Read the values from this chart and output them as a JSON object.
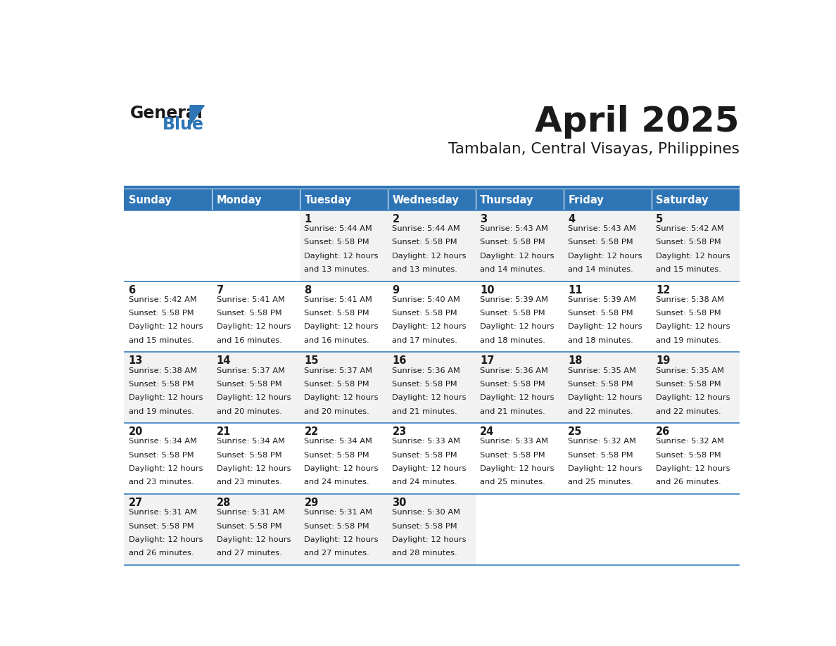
{
  "title": "April 2025",
  "subtitle": "Tambalan, Central Visayas, Philippines",
  "days_of_week": [
    "Sunday",
    "Monday",
    "Tuesday",
    "Wednesday",
    "Thursday",
    "Friday",
    "Saturday"
  ],
  "header_bg": "#2E75B6",
  "header_text": "#FFFFFF",
  "row_bg_odd": "#F2F2F2",
  "row_bg_even": "#FFFFFF",
  "cell_border": "#3A7EBF",
  "title_color": "#1a1a1a",
  "subtitle_color": "#1a1a1a",
  "text_color": "#1a1a1a",
  "logo_text_color": "#1a1a1a",
  "logo_blue_color": "#2E75B6",
  "calendar_data": [
    [
      {
        "day": "",
        "sunrise": "",
        "sunset": "",
        "daylight": ""
      },
      {
        "day": "",
        "sunrise": "",
        "sunset": "",
        "daylight": ""
      },
      {
        "day": "1",
        "sunrise": "5:44 AM",
        "sunset": "5:58 PM",
        "daylight": "12 hours and 13 minutes."
      },
      {
        "day": "2",
        "sunrise": "5:44 AM",
        "sunset": "5:58 PM",
        "daylight": "12 hours and 13 minutes."
      },
      {
        "day": "3",
        "sunrise": "5:43 AM",
        "sunset": "5:58 PM",
        "daylight": "12 hours and 14 minutes."
      },
      {
        "day": "4",
        "sunrise": "5:43 AM",
        "sunset": "5:58 PM",
        "daylight": "12 hours and 14 minutes."
      },
      {
        "day": "5",
        "sunrise": "5:42 AM",
        "sunset": "5:58 PM",
        "daylight": "12 hours and 15 minutes."
      }
    ],
    [
      {
        "day": "6",
        "sunrise": "5:42 AM",
        "sunset": "5:58 PM",
        "daylight": "12 hours and 15 minutes."
      },
      {
        "day": "7",
        "sunrise": "5:41 AM",
        "sunset": "5:58 PM",
        "daylight": "12 hours and 16 minutes."
      },
      {
        "day": "8",
        "sunrise": "5:41 AM",
        "sunset": "5:58 PM",
        "daylight": "12 hours and 16 minutes."
      },
      {
        "day": "9",
        "sunrise": "5:40 AM",
        "sunset": "5:58 PM",
        "daylight": "12 hours and 17 minutes."
      },
      {
        "day": "10",
        "sunrise": "5:39 AM",
        "sunset": "5:58 PM",
        "daylight": "12 hours and 18 minutes."
      },
      {
        "day": "11",
        "sunrise": "5:39 AM",
        "sunset": "5:58 PM",
        "daylight": "12 hours and 18 minutes."
      },
      {
        "day": "12",
        "sunrise": "5:38 AM",
        "sunset": "5:58 PM",
        "daylight": "12 hours and 19 minutes."
      }
    ],
    [
      {
        "day": "13",
        "sunrise": "5:38 AM",
        "sunset": "5:58 PM",
        "daylight": "12 hours and 19 minutes."
      },
      {
        "day": "14",
        "sunrise": "5:37 AM",
        "sunset": "5:58 PM",
        "daylight": "12 hours and 20 minutes."
      },
      {
        "day": "15",
        "sunrise": "5:37 AM",
        "sunset": "5:58 PM",
        "daylight": "12 hours and 20 minutes."
      },
      {
        "day": "16",
        "sunrise": "5:36 AM",
        "sunset": "5:58 PM",
        "daylight": "12 hours and 21 minutes."
      },
      {
        "day": "17",
        "sunrise": "5:36 AM",
        "sunset": "5:58 PM",
        "daylight": "12 hours and 21 minutes."
      },
      {
        "day": "18",
        "sunrise": "5:35 AM",
        "sunset": "5:58 PM",
        "daylight": "12 hours and 22 minutes."
      },
      {
        "day": "19",
        "sunrise": "5:35 AM",
        "sunset": "5:58 PM",
        "daylight": "12 hours and 22 minutes."
      }
    ],
    [
      {
        "day": "20",
        "sunrise": "5:34 AM",
        "sunset": "5:58 PM",
        "daylight": "12 hours and 23 minutes."
      },
      {
        "day": "21",
        "sunrise": "5:34 AM",
        "sunset": "5:58 PM",
        "daylight": "12 hours and 23 minutes."
      },
      {
        "day": "22",
        "sunrise": "5:34 AM",
        "sunset": "5:58 PM",
        "daylight": "12 hours and 24 minutes."
      },
      {
        "day": "23",
        "sunrise": "5:33 AM",
        "sunset": "5:58 PM",
        "daylight": "12 hours and 24 minutes."
      },
      {
        "day": "24",
        "sunrise": "5:33 AM",
        "sunset": "5:58 PM",
        "daylight": "12 hours and 25 minutes."
      },
      {
        "day": "25",
        "sunrise": "5:32 AM",
        "sunset": "5:58 PM",
        "daylight": "12 hours and 25 minutes."
      },
      {
        "day": "26",
        "sunrise": "5:32 AM",
        "sunset": "5:58 PM",
        "daylight": "12 hours and 26 minutes."
      }
    ],
    [
      {
        "day": "27",
        "sunrise": "5:31 AM",
        "sunset": "5:58 PM",
        "daylight": "12 hours and 26 minutes."
      },
      {
        "day": "28",
        "sunrise": "5:31 AM",
        "sunset": "5:58 PM",
        "daylight": "12 hours and 27 minutes."
      },
      {
        "day": "29",
        "sunrise": "5:31 AM",
        "sunset": "5:58 PM",
        "daylight": "12 hours and 27 minutes."
      },
      {
        "day": "30",
        "sunrise": "5:30 AM",
        "sunset": "5:58 PM",
        "daylight": "12 hours and 28 minutes."
      },
      {
        "day": "",
        "sunrise": "",
        "sunset": "",
        "daylight": ""
      },
      {
        "day": "",
        "sunrise": "",
        "sunset": "",
        "daylight": ""
      },
      {
        "day": "",
        "sunrise": "",
        "sunset": "",
        "daylight": ""
      }
    ]
  ]
}
